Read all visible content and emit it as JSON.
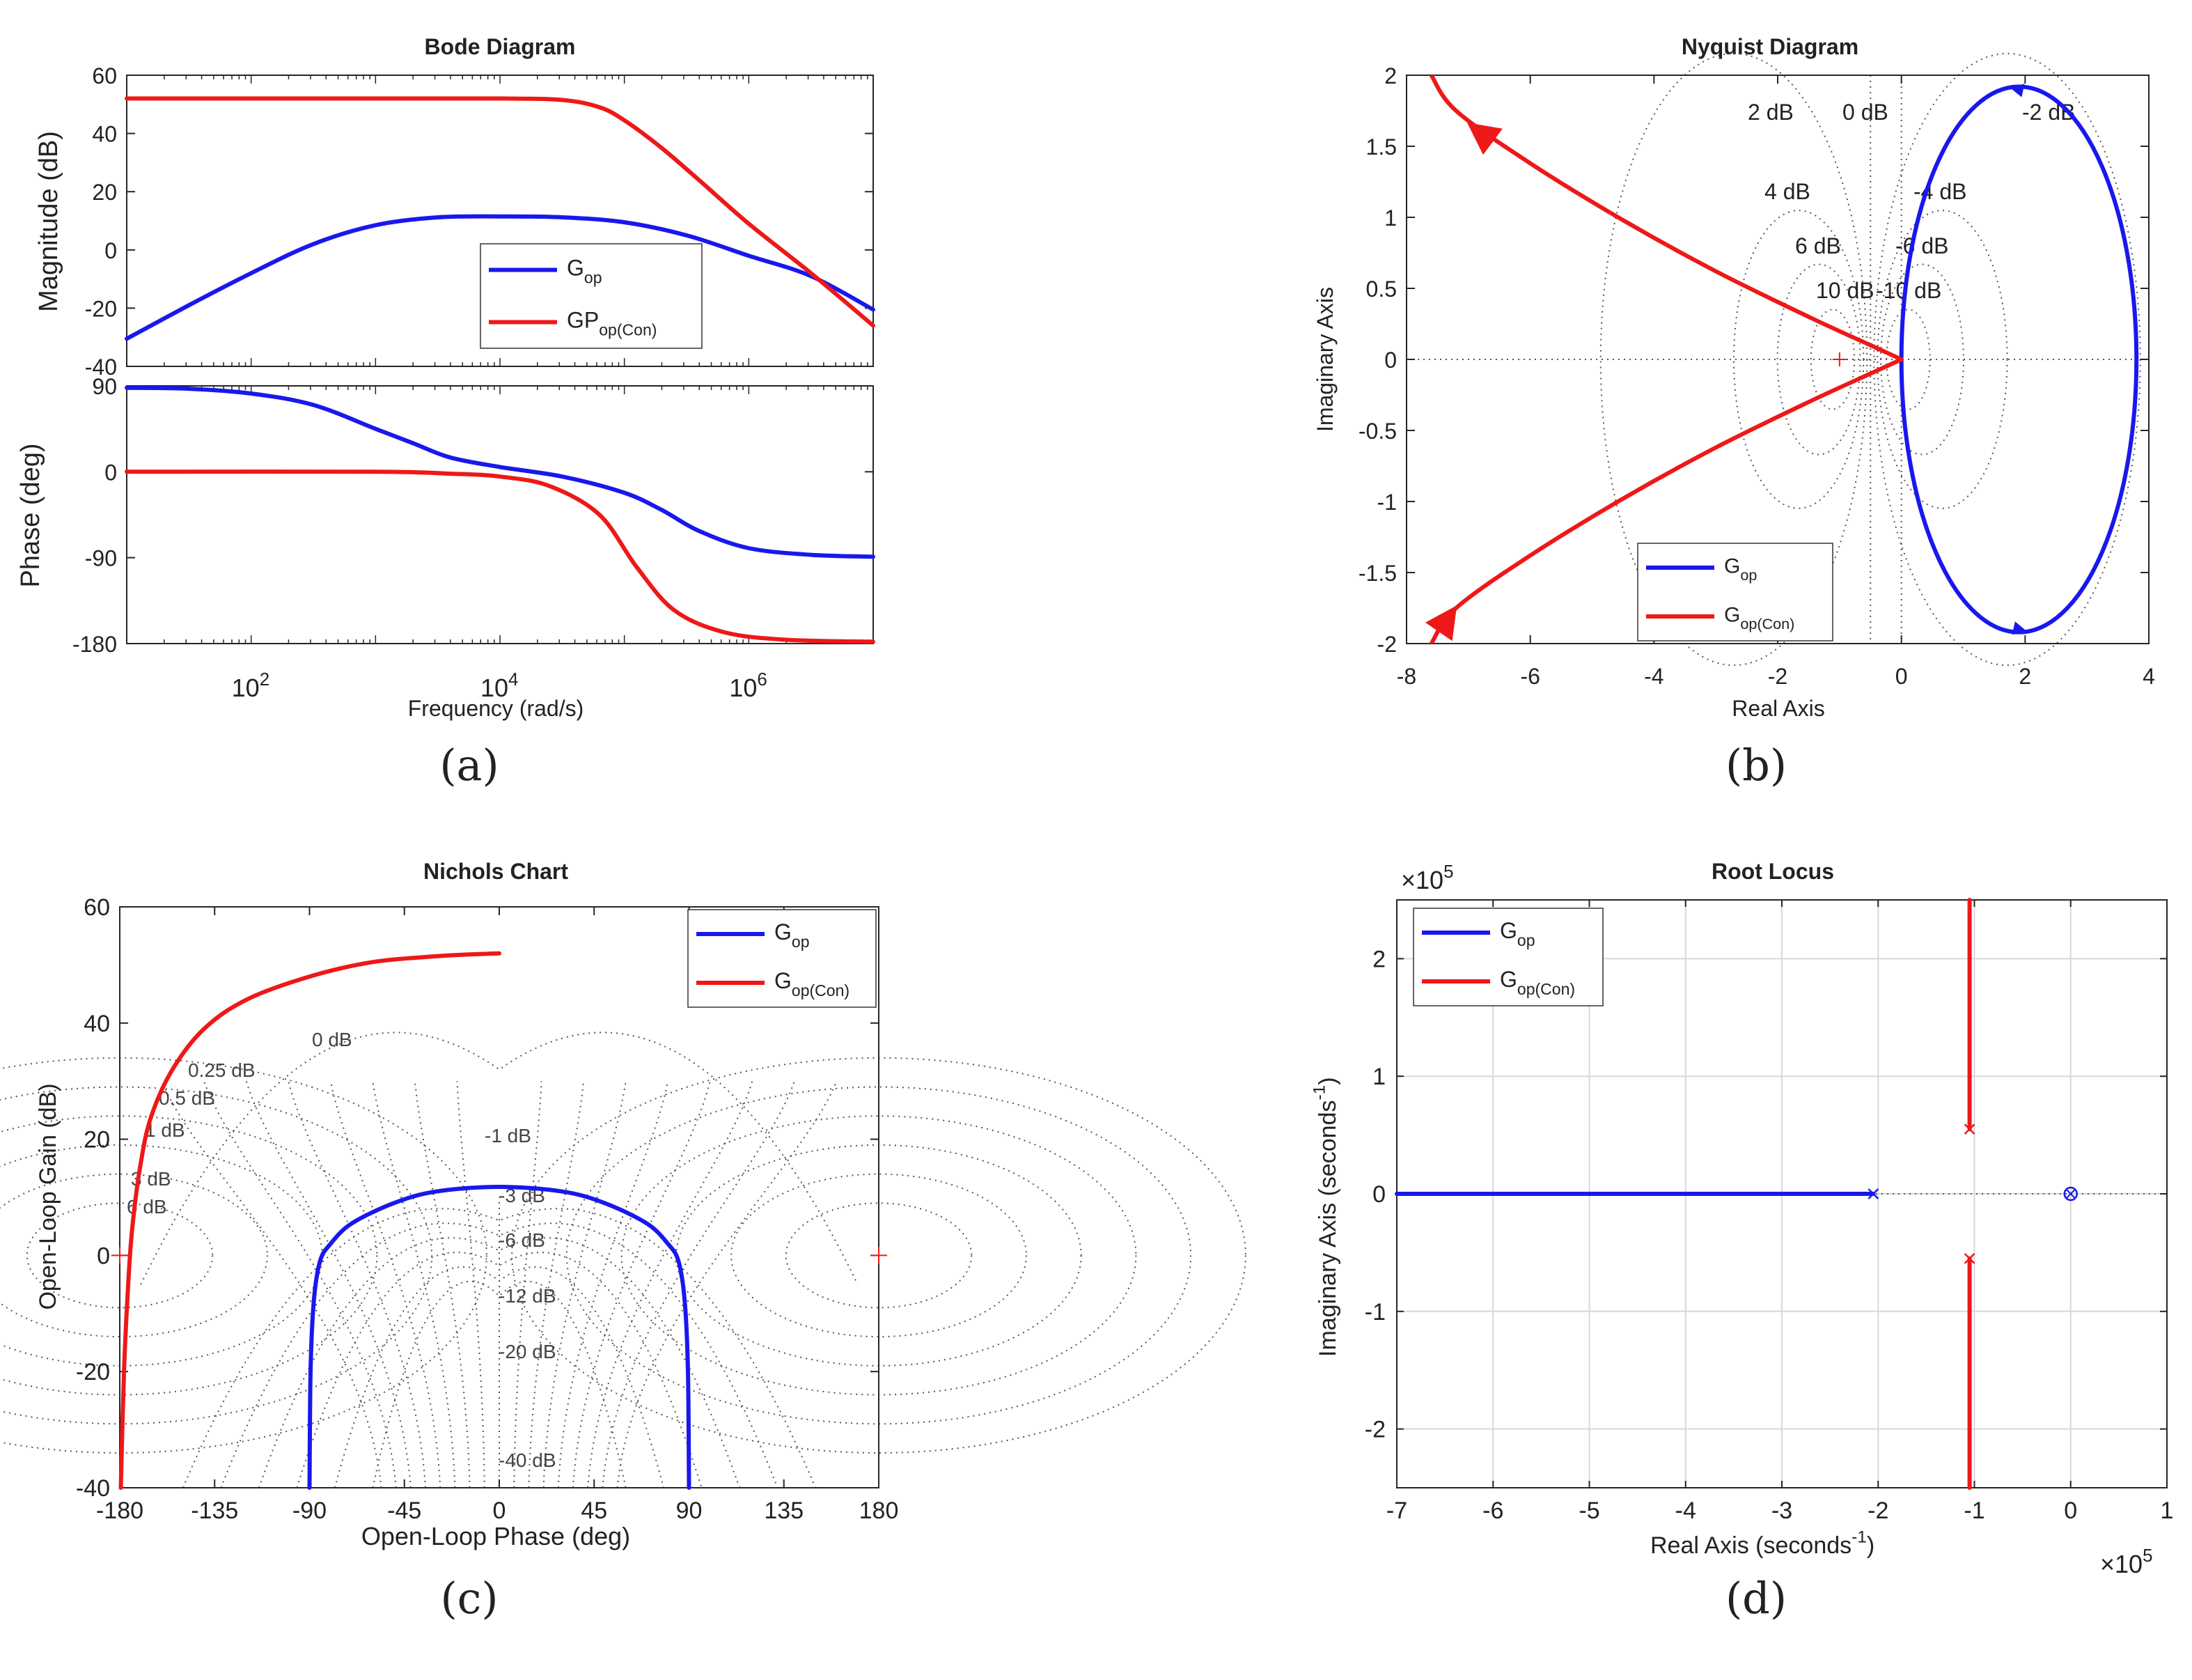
{
  "colors": {
    "gop": "#1818ee",
    "gcon": "#ee1818",
    "axis": "#262626",
    "grid": "#555555",
    "background": "#ffffff"
  },
  "chart_data": [
    {
      "id": "bode",
      "type": "line",
      "panel_label": "(a)",
      "title": "Bode Diagram",
      "xlabel": "Frequency  (rad/s)",
      "x_scale": "log",
      "xlim_log10": [
        1,
        7
      ],
      "x_tick_labels": [
        {
          "base": "10",
          "exp": "2"
        },
        {
          "base": "10",
          "exp": "4"
        },
        {
          "base": "10",
          "exp": "6"
        }
      ],
      "magnitude": {
        "ylabel": "Magnitude (dB)",
        "ylim": [
          -40,
          60
        ],
        "yticks": [
          -40,
          -20,
          0,
          20,
          40,
          60
        ],
        "series": [
          {
            "name": "G",
            "subscript": "op",
            "color_key": "gop",
            "points": [
              [
                1,
                -30.5
              ],
              [
                1.5,
                -19
              ],
              [
                2,
                -8
              ],
              [
                2.5,
                2
              ],
              [
                3,
                8.5
              ],
              [
                3.5,
                11.2
              ],
              [
                4,
                11.5
              ],
              [
                4.5,
                11.2
              ],
              [
                5,
                9.5
              ],
              [
                5.5,
                5
              ],
              [
                6,
                -2
              ],
              [
                6.5,
                -9
              ],
              [
                7,
                -20.5
              ]
            ]
          },
          {
            "name": "GP",
            "subscript": "op(Con)",
            "color_key": "gcon",
            "points": [
              [
                1,
                52
              ],
              [
                3,
                52
              ],
              [
                4,
                52
              ],
              [
                4.5,
                51.5
              ],
              [
                4.8,
                49
              ],
              [
                5,
                44.5
              ],
              [
                5.3,
                35
              ],
              [
                5.6,
                24
              ],
              [
                6,
                9
              ],
              [
                6.5,
                -8
              ],
              [
                7,
                -26
              ]
            ]
          }
        ]
      },
      "phase": {
        "ylabel": "Phase (deg)",
        "ylim": [
          -180,
          90
        ],
        "yticks": [
          -180,
          -90,
          0,
          90
        ],
        "series": [
          {
            "name": "G",
            "subscript": "op",
            "color_key": "gop",
            "points": [
              [
                1,
                88
              ],
              [
                1.5,
                87
              ],
              [
                2,
                82
              ],
              [
                2.5,
                70
              ],
              [
                3,
                45
              ],
              [
                3.3,
                30
              ],
              [
                3.6,
                15
              ],
              [
                4,
                5
              ],
              [
                4.5,
                -5
              ],
              [
                5,
                -22
              ],
              [
                5.3,
                -40
              ],
              [
                5.6,
                -62
              ],
              [
                6,
                -80
              ],
              [
                6.5,
                -87
              ],
              [
                7,
                -89
              ]
            ]
          },
          {
            "name": "GP",
            "subscript": "op(Con)",
            "color_key": "gcon",
            "points": [
              [
                1,
                0
              ],
              [
                3,
                0
              ],
              [
                3.6,
                -2
              ],
              [
                4,
                -5
              ],
              [
                4.4,
                -15
              ],
              [
                4.8,
                -45
              ],
              [
                5.1,
                -100
              ],
              [
                5.4,
                -145
              ],
              [
                5.8,
                -168
              ],
              [
                6.3,
                -176
              ],
              [
                7,
                -178
              ]
            ]
          }
        ]
      },
      "legend": [
        {
          "name": "G",
          "subscript": "op"
        },
        {
          "name": "GP",
          "subscript": "op(Con)"
        }
      ]
    },
    {
      "id": "nyquist",
      "type": "line",
      "panel_label": "(b)",
      "title": "Nyquist Diagram",
      "xlabel": "Real Axis",
      "ylabel": "Imaginary Axis",
      "xlim": [
        -8,
        4
      ],
      "ylim": [
        -2,
        2
      ],
      "xticks": [
        -8,
        -6,
        -4,
        -2,
        0,
        2,
        4
      ],
      "yticks": [
        -2,
        -1.5,
        -1,
        -0.5,
        0,
        0.5,
        1,
        1.5,
        2
      ],
      "grid_labels": [
        "2 dB",
        "0 dB",
        "-2 dB",
        "4 dB",
        "-4 dB",
        "6 dB",
        "-6 dB",
        "10 dB",
        "-10 dB"
      ],
      "critical_point": [
        -1,
        0
      ],
      "series": [
        {
          "name": "G",
          "subscript": "op",
          "color_key": "gop",
          "shape": "circle",
          "center": [
            1.9,
            0
          ],
          "radius_x": 1.9,
          "radius_y": 1.92
        },
        {
          "name": "G",
          "subscript": "op(Con)",
          "color_key": "gcon",
          "points_upper": [
            [
              0,
              0
            ],
            [
              -0.5,
              0.1
            ],
            [
              -1.5,
              0.3
            ],
            [
              -3,
              0.62
            ],
            [
              -4.5,
              0.98
            ],
            [
              -6,
              1.38
            ],
            [
              -7.2,
              1.75
            ],
            [
              -7.6,
              2
            ]
          ]
        }
      ],
      "legend": [
        {
          "name": "G",
          "subscript": "op"
        },
        {
          "name": "G",
          "subscript": "op(Con)"
        }
      ]
    },
    {
      "id": "nichols",
      "type": "line",
      "panel_label": "(c)",
      "title": "Nichols Chart",
      "xlabel": "Open-Loop Phase (deg)",
      "ylabel": "Open-Loop Gain (dB)",
      "xlim": [
        -180,
        180
      ],
      "ylim": [
        -40,
        60
      ],
      "xticks": [
        -180,
        -135,
        -90,
        -45,
        0,
        45,
        90,
        135,
        180
      ],
      "yticks": [
        -40,
        -20,
        0,
        20,
        40,
        60
      ],
      "grid_labels": [
        "0 dB",
        "0.25 dB",
        "0.5 dB",
        "1 dB",
        "3 dB",
        "6 dB",
        "-1 dB",
        "-3 dB",
        "-6 dB",
        "-12 dB",
        "-20 dB",
        "-40 dB"
      ],
      "series": [
        {
          "name": "G",
          "subscript": "op",
          "color_key": "gop",
          "points": [
            [
              -90,
              -40
            ],
            [
              -89.5,
              -20
            ],
            [
              -88,
              -8
            ],
            [
              -85,
              -1
            ],
            [
              -80,
              2
            ],
            [
              -70,
              5.5
            ],
            [
              -50,
              9
            ],
            [
              -30,
              11
            ],
            [
              0,
              11.8
            ],
            [
              30,
              11
            ],
            [
              50,
              9
            ],
            [
              70,
              5.5
            ],
            [
              80,
              2
            ],
            [
              85,
              -1
            ],
            [
              88,
              -8
            ],
            [
              89.5,
              -20
            ],
            [
              90,
              -40
            ]
          ]
        },
        {
          "name": "G",
          "subscript": "op(Con)",
          "color_key": "gcon",
          "points": [
            [
              -179.5,
              -40
            ],
            [
              -178,
              -20
            ],
            [
              -176,
              -5
            ],
            [
              -174,
              5
            ],
            [
              -170,
              16
            ],
            [
              -165,
              24
            ],
            [
              -155,
              32
            ],
            [
              -140,
              39
            ],
            [
              -120,
              44
            ],
            [
              -90,
              48
            ],
            [
              -60,
              50.5
            ],
            [
              -30,
              51.5
            ],
            [
              -15,
              51.8
            ],
            [
              0,
              52
            ]
          ]
        }
      ],
      "legend": [
        {
          "name": "G",
          "subscript": "op"
        },
        {
          "name": "G",
          "subscript": "op(Con)"
        }
      ]
    },
    {
      "id": "root-locus",
      "type": "scatter",
      "panel_label": "(d)",
      "title": "Root Locus",
      "xlabel": "Real Axis (seconds",
      "xlabel_sup": "-1",
      "xlabel_close": ")",
      "ylabel": "Imaginary Axis (seconds",
      "ylabel_sup": "-1",
      "ylabel_close": ")",
      "x_scale_factor": {
        "text": "×10",
        "exp": "5"
      },
      "y_scale_factor": {
        "text": "×10",
        "exp": "5"
      },
      "xlim": [
        -7,
        1
      ],
      "ylim": [
        -2.5,
        2.5
      ],
      "xticks": [
        -7,
        -6,
        -5,
        -4,
        -3,
        -2,
        -1,
        0,
        1
      ],
      "yticks": [
        -2,
        -1,
        0,
        1,
        2
      ],
      "series": [
        {
          "name": "G",
          "subscript": "op",
          "color_key": "gop",
          "branches": [
            [
              [
                -2.05,
                0
              ],
              [
                -7,
                0
              ]
            ]
          ],
          "poles": [
            [
              -2.05,
              0
            ]
          ],
          "zeros": [
            [
              0,
              0
            ]
          ]
        },
        {
          "name": "G",
          "subscript": "op(Con)",
          "color_key": "gcon",
          "branches": [
            [
              [
                -1.05,
                0.55
              ],
              [
                -1.05,
                2.5
              ]
            ],
            [
              [
                -1.05,
                -0.55
              ],
              [
                -1.05,
                -2.5
              ]
            ]
          ],
          "poles": [
            [
              -1.05,
              0.55
            ],
            [
              -1.05,
              -0.55
            ]
          ],
          "zeros": []
        }
      ],
      "legend": [
        {
          "name": "G",
          "subscript": "op"
        },
        {
          "name": "G",
          "subscript": "op(Con)"
        }
      ]
    }
  ]
}
